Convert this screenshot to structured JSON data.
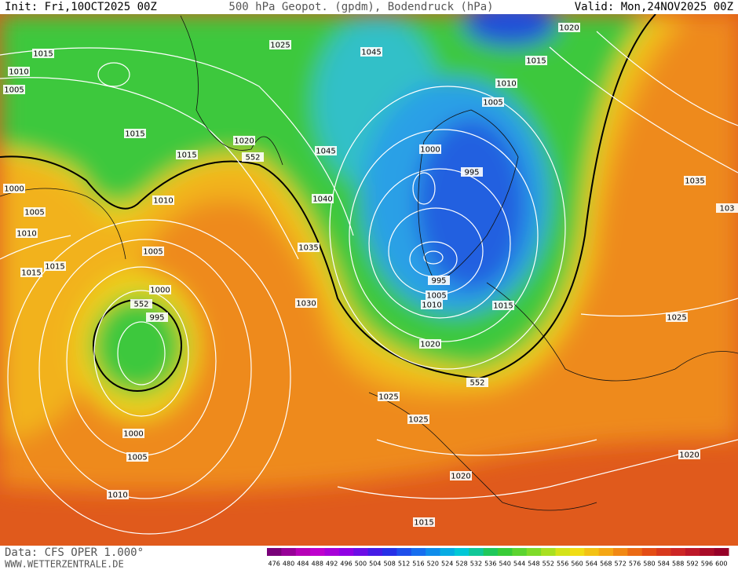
{
  "header": {
    "init": "Init: Fri,10OCT2025 00Z",
    "title": "500 hPa Geopot. (gpdm), Bodendruck (hPa)",
    "valid": "Valid: Mon,24NOV2025 00Z"
  },
  "footer": {
    "source": "Data: CFS OPER 1.000°",
    "site": "WWW.WETTERZENTRALE.DE"
  },
  "scale": {
    "labels": [
      "476",
      "480",
      "484",
      "488",
      "492",
      "496",
      "500",
      "504",
      "508",
      "512",
      "516",
      "520",
      "524",
      "528",
      "532",
      "536",
      "540",
      "544",
      "548",
      "552",
      "556",
      "560",
      "564",
      "568",
      "572",
      "576",
      "580",
      "584",
      "588",
      "592",
      "596",
      "600"
    ]
  },
  "map": {
    "labels": [
      "1015",
      "1010",
      "1005",
      "1025",
      "1045",
      "1020",
      "1015",
      "1010",
      "1005",
      "1015",
      "1015",
      "1020",
      "552",
      "1045",
      "1000",
      "995",
      "1000",
      "1005",
      "1010",
      "1010",
      "1040",
      "1035",
      "103",
      "1035",
      "1005",
      "1015",
      "1015",
      "1000",
      "552",
      "995",
      "995",
      "1005",
      "1010",
      "1030",
      "1015",
      "1025",
      "1020",
      "552",
      "1025",
      "1025",
      "1000",
      "1005",
      "1020",
      "1020",
      "1010",
      "1015"
    ]
  }
}
